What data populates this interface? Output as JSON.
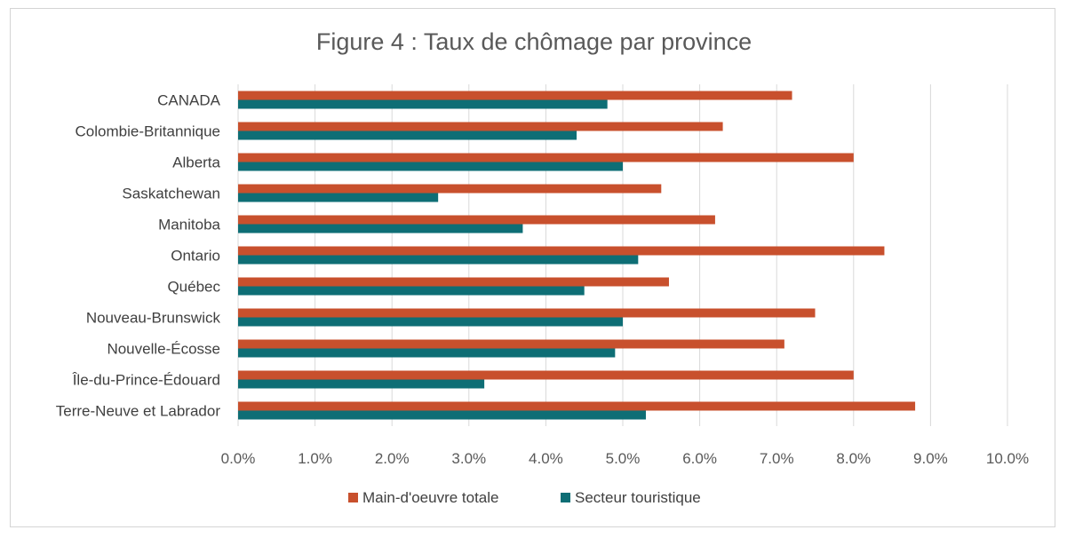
{
  "chart_data": {
    "type": "bar",
    "orientation": "horizontal",
    "title": "Figure 4 : Taux de chômage par province",
    "xlabel": "",
    "ylabel": "",
    "xlim": [
      0,
      10
    ],
    "x_ticks": [
      "0.0%",
      "1.0%",
      "2.0%",
      "3.0%",
      "4.0%",
      "5.0%",
      "6.0%",
      "7.0%",
      "8.0%",
      "9.0%",
      "10.0%"
    ],
    "grid": true,
    "legend_position": "bottom",
    "categories": [
      "CANADA",
      "Colombie-Britannique",
      "Alberta",
      "Saskatchewan",
      "Manitoba",
      "Ontario",
      "Québec",
      "Nouveau-Brunswick",
      "Nouvelle-Écosse",
      "Île-du-Prince-Édouard",
      "Terre-Neuve et Labrador"
    ],
    "series": [
      {
        "name": "Main-d'oeuvre totale",
        "color": "#c8502d",
        "values": [
          7.2,
          6.3,
          8.0,
          5.5,
          6.2,
          8.4,
          5.6,
          7.5,
          7.1,
          8.0,
          8.8
        ]
      },
      {
        "name": "Secteur touristique",
        "color": "#0e6e75",
        "values": [
          4.8,
          4.4,
          5.0,
          2.6,
          3.7,
          5.2,
          4.5,
          5.0,
          4.9,
          3.2,
          5.3
        ]
      }
    ]
  }
}
